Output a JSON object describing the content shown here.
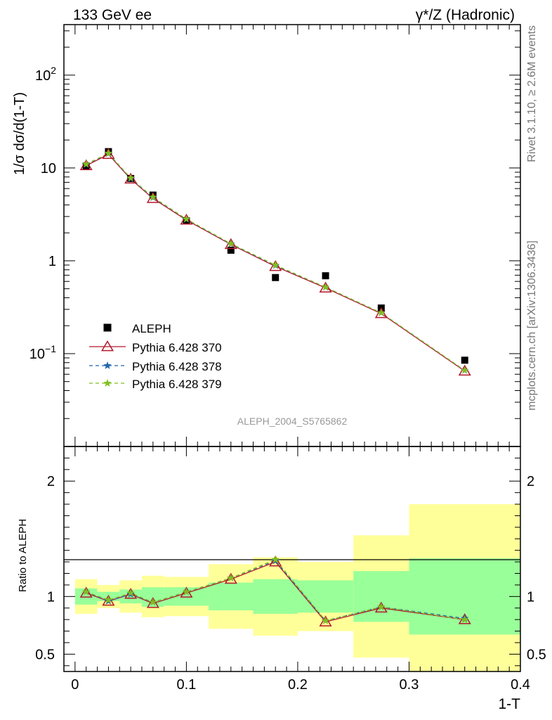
{
  "header": {
    "left": "133 GeV ee",
    "right": "γ*/Z (Hadronic)"
  },
  "side": {
    "top": "Rivet 3.1.10, ≥ 2.6M events",
    "bottom": "mcplots.cern.ch [arXiv:1306.3436]"
  },
  "watermark": "ALEPH_2004_S5765862",
  "colors": {
    "data": "#000000",
    "mc370": "#b2182b",
    "mc378": "#2166ac",
    "mc379": "#7fbf1f",
    "band_inner": "#99ff99",
    "band_outer": "#ffff99"
  },
  "chart_data": [
    {
      "type": "scatter",
      "title": "",
      "xlabel": "1-T",
      "ylabel": "1/σ dσ/d(1-T)",
      "yscale": "log",
      "xlim": [
        -0.01,
        0.4
      ],
      "ylim": [
        0.01,
        350
      ],
      "ytick_labels": [
        "10^-1",
        "1",
        "10",
        "10^2"
      ],
      "legend": [
        "ALEPH",
        "Pythia 6.428 370",
        "Pythia 6.428 378",
        "Pythia 6.428 379"
      ],
      "x": [
        0.01,
        0.03,
        0.05,
        0.07,
        0.1,
        0.14,
        0.18,
        0.225,
        0.275,
        0.35
      ],
      "series": [
        {
          "name": "ALEPH",
          "marker": "square",
          "values": [
            10.5,
            15.0,
            7.7,
            5.1,
            2.7,
            1.3,
            0.66,
            0.69,
            0.31,
            0.085
          ]
        },
        {
          "name": "Pythia 6.428 370",
          "marker": "triangle",
          "values": [
            10.6,
            14.0,
            7.6,
            4.7,
            2.75,
            1.5,
            0.87,
            0.51,
            0.27,
            0.065
          ]
        },
        {
          "name": "Pythia 6.428 378",
          "marker": "star",
          "values": [
            10.9,
            14.3,
            7.7,
            4.8,
            2.8,
            1.52,
            0.89,
            0.52,
            0.275,
            0.066
          ]
        },
        {
          "name": "Pythia 6.428 379",
          "marker": "star",
          "values": [
            11.0,
            14.4,
            7.8,
            4.85,
            2.82,
            1.53,
            0.9,
            0.52,
            0.275,
            0.066
          ]
        }
      ]
    },
    {
      "type": "line",
      "xlabel": "1-T",
      "ylabel": "Ratio to ALEPH",
      "xlim": [
        -0.01,
        0.4
      ],
      "ylim": [
        0.35,
        2.3
      ],
      "x": [
        0.01,
        0.03,
        0.05,
        0.07,
        0.1,
        0.14,
        0.18,
        0.225,
        0.275,
        0.35
      ],
      "bin_edges": [
        0,
        0.02,
        0.04,
        0.06,
        0.08,
        0.12,
        0.16,
        0.2,
        0.25,
        0.3,
        0.4
      ],
      "band_inner": {
        "low": [
          0.93,
          0.96,
          0.94,
          0.91,
          0.92,
          0.88,
          0.85,
          0.86,
          0.78,
          0.67
        ],
        "high": [
          1.07,
          1.04,
          1.06,
          1.08,
          1.08,
          1.12,
          1.15,
          1.14,
          1.22,
          1.33
        ]
      },
      "band_outer": {
        "low": [
          0.85,
          0.9,
          0.86,
          0.82,
          0.83,
          0.72,
          0.66,
          0.7,
          0.47,
          0.35
        ],
        "high": [
          1.15,
          1.1,
          1.14,
          1.18,
          1.17,
          1.28,
          1.34,
          1.3,
          1.53,
          1.8
        ]
      },
      "series": [
        {
          "name": "Pythia 6.428 370",
          "values": [
            1.03,
            0.96,
            1.02,
            0.94,
            1.03,
            1.15,
            1.3,
            0.78,
            0.9,
            0.8
          ]
        },
        {
          "name": "Pythia 6.428 378",
          "values": [
            1.04,
            0.96,
            1.02,
            0.95,
            1.04,
            1.16,
            1.31,
            0.79,
            0.91,
            0.81
          ]
        },
        {
          "name": "Pythia 6.428 379",
          "values": [
            1.04,
            0.97,
            1.03,
            0.95,
            1.04,
            1.16,
            1.32,
            0.79,
            0.91,
            0.8
          ]
        }
      ],
      "ytick_labels": [
        "0.5",
        "1",
        "2"
      ],
      "xtick_labels": [
        "0",
        "0.1",
        "0.2",
        "0.3",
        "0.4"
      ]
    }
  ]
}
